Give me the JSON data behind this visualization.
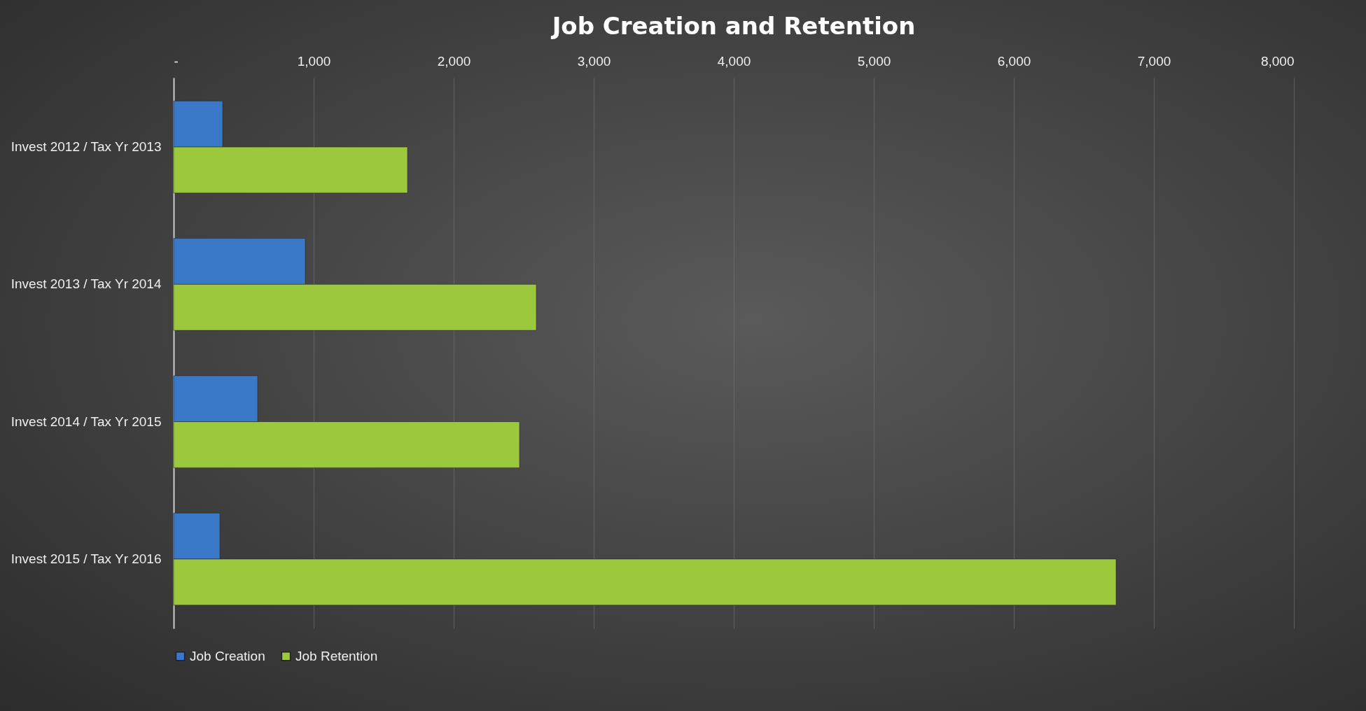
{
  "chart_data": {
    "type": "bar",
    "orientation": "horizontal",
    "title": "Job Creation and Retention",
    "categories": [
      "Invest 2012 / Tax Yr 2013",
      "Invest 2013 / Tax Yr 2014",
      "Invest 2014 / Tax Yr 2015",
      "Invest 2015 / Tax Yr 2016"
    ],
    "series": [
      {
        "name": "Job Creation",
        "color": "#3a78c8",
        "values": [
          350,
          940,
          600,
          330
        ]
      },
      {
        "name": "Job Retention",
        "color": "#9bc83c",
        "values": [
          1670,
          2590,
          2470,
          6730
        ]
      }
    ],
    "xlim": [
      0,
      8000
    ],
    "xticks": [
      {
        "value": 0,
        "label": "-"
      },
      {
        "value": 1000,
        "label": "1,000"
      },
      {
        "value": 2000,
        "label": "2,000"
      },
      {
        "value": 3000,
        "label": "3,000"
      },
      {
        "value": 4000,
        "label": "4,000"
      },
      {
        "value": 5000,
        "label": "5,000"
      },
      {
        "value": 6000,
        "label": "6,000"
      },
      {
        "value": 7000,
        "label": "7,000"
      },
      {
        "value": 8000,
        "label": "8,000"
      }
    ],
    "grid": "x",
    "legend": "bottom"
  }
}
